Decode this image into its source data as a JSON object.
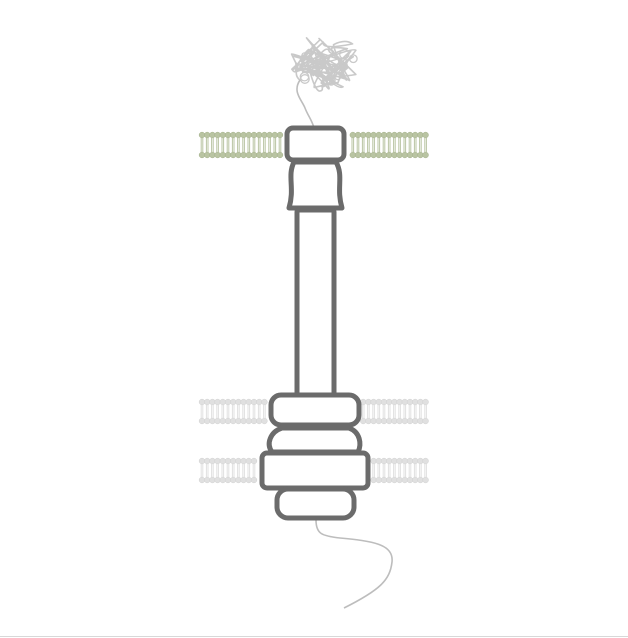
{
  "diagram": {
    "subject": "transmembrane-protein-complex",
    "colors": {
      "background": "#ffffff",
      "membrane_top": "#b9c4a2",
      "membrane_top_dark": "#a5b18c",
      "membrane_lower": "#e0e0e0",
      "membrane_lower_dark": "#d2d2d2",
      "protein_outline": "#6b6b6b",
      "protein_fill": "#ffffff",
      "tail_line": "#bdbdbd",
      "domain_tangle": "#c9c9c9",
      "bottom_rule": "#d8d8d8"
    }
  }
}
